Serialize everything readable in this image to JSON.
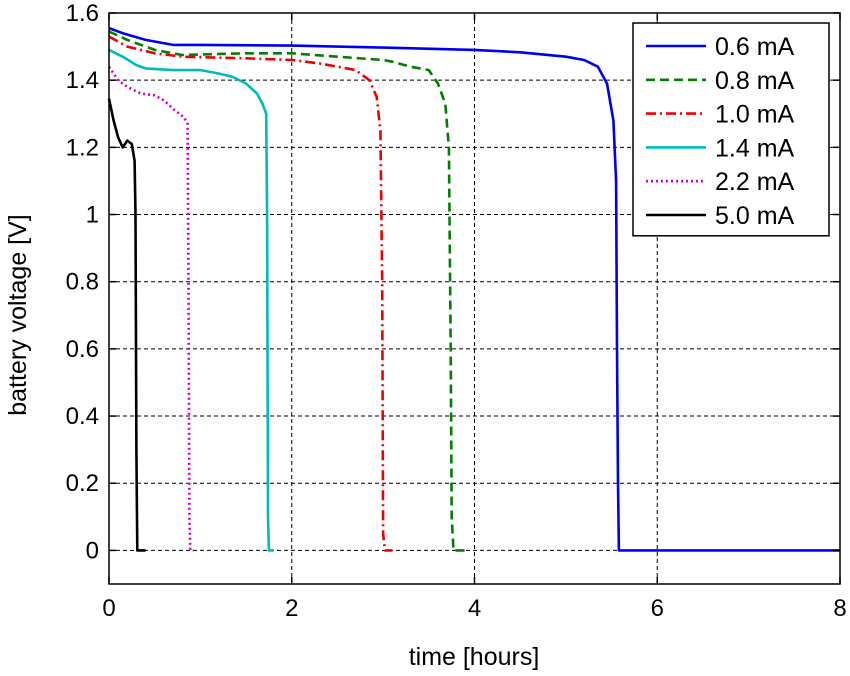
{
  "chart_data": {
    "type": "line",
    "title": "",
    "xlabel": "time [hours]",
    "ylabel": "battery voltage [V]",
    "xlim": [
      0,
      8
    ],
    "ylim": [
      -0.1,
      1.6
    ],
    "xticks": [
      0,
      2,
      4,
      6,
      8
    ],
    "yticks": [
      0,
      0.2,
      0.4,
      0.6,
      0.8,
      1,
      1.2,
      1.4,
      1.6
    ],
    "xtick_labels": [
      "0",
      "2",
      "4",
      "6",
      "8"
    ],
    "ytick_labels": [
      "0",
      "0.2",
      "0.4",
      "0.6",
      "0.8",
      "1",
      "1.2",
      "1.4",
      "1.6"
    ],
    "grid": true,
    "legend_position": "top-right",
    "series": [
      {
        "name": "0.6 mA",
        "color": "#0000ee",
        "dash": "solid",
        "points": [
          [
            0,
            1.555
          ],
          [
            0.15,
            1.54
          ],
          [
            0.4,
            1.52
          ],
          [
            0.7,
            1.505
          ],
          [
            1.0,
            1.505
          ],
          [
            2.0,
            1.503
          ],
          [
            3.0,
            1.497
          ],
          [
            4.0,
            1.49
          ],
          [
            4.5,
            1.483
          ],
          [
            5.0,
            1.47
          ],
          [
            5.2,
            1.46
          ],
          [
            5.35,
            1.44
          ],
          [
            5.45,
            1.39
          ],
          [
            5.52,
            1.28
          ],
          [
            5.55,
            1.1
          ],
          [
            5.56,
            0.6
          ],
          [
            5.57,
            0.2
          ],
          [
            5.58,
            0.0
          ],
          [
            6.0,
            0.0
          ],
          [
            8.0,
            0.0
          ]
        ]
      },
      {
        "name": "0.8 mA",
        "color": "#008000",
        "dash": "dashed",
        "points": [
          [
            0,
            1.545
          ],
          [
            0.2,
            1.52
          ],
          [
            0.5,
            1.49
          ],
          [
            0.8,
            1.475
          ],
          [
            1.5,
            1.48
          ],
          [
            2.0,
            1.48
          ],
          [
            2.5,
            1.47
          ],
          [
            3.0,
            1.46
          ],
          [
            3.1,
            1.455
          ],
          [
            3.3,
            1.44
          ],
          [
            3.5,
            1.43
          ],
          [
            3.6,
            1.39
          ],
          [
            3.68,
            1.33
          ],
          [
            3.72,
            1.2
          ],
          [
            3.74,
            0.6
          ],
          [
            3.75,
            0.1
          ],
          [
            3.77,
            0.0
          ],
          [
            3.9,
            0.0
          ]
        ]
      },
      {
        "name": "1.0 mA",
        "color": "#ee0000",
        "dash": "dashdot",
        "points": [
          [
            0,
            1.53
          ],
          [
            0.2,
            1.5
          ],
          [
            0.5,
            1.48
          ],
          [
            0.8,
            1.47
          ],
          [
            1.5,
            1.465
          ],
          [
            2.0,
            1.46
          ],
          [
            2.3,
            1.45
          ],
          [
            2.5,
            1.44
          ],
          [
            2.7,
            1.43
          ],
          [
            2.85,
            1.4
          ],
          [
            2.93,
            1.35
          ],
          [
            2.97,
            1.25
          ],
          [
            2.99,
            0.8
          ],
          [
            3.0,
            0.05
          ],
          [
            3.02,
            0.0
          ],
          [
            3.1,
            0.0
          ]
        ]
      },
      {
        "name": "1.4 mA",
        "color": "#00bbbb",
        "dash": "solid",
        "points": [
          [
            0,
            1.49
          ],
          [
            0.15,
            1.47
          ],
          [
            0.3,
            1.445
          ],
          [
            0.4,
            1.435
          ],
          [
            0.7,
            1.43
          ],
          [
            1.0,
            1.43
          ],
          [
            1.2,
            1.42
          ],
          [
            1.35,
            1.41
          ],
          [
            1.5,
            1.39
          ],
          [
            1.62,
            1.36
          ],
          [
            1.68,
            1.33
          ],
          [
            1.72,
            1.3
          ],
          [
            1.73,
            1.0
          ],
          [
            1.74,
            0.1
          ],
          [
            1.75,
            0.0
          ],
          [
            1.8,
            0.0
          ]
        ]
      },
      {
        "name": "2.2 mA",
        "color": "#cc00cc",
        "dash": "dotted",
        "points": [
          [
            0,
            1.44
          ],
          [
            0.1,
            1.4
          ],
          [
            0.2,
            1.38
          ],
          [
            0.35,
            1.36
          ],
          [
            0.5,
            1.355
          ],
          [
            0.6,
            1.34
          ],
          [
            0.72,
            1.31
          ],
          [
            0.82,
            1.29
          ],
          [
            0.86,
            1.27
          ],
          [
            0.87,
            0.8
          ],
          [
            0.88,
            0.1
          ],
          [
            0.89,
            0.0
          ],
          [
            0.92,
            0.0
          ]
        ]
      },
      {
        "name": "5.0 mA",
        "color": "#000000",
        "dash": "solid",
        "points": [
          [
            0,
            1.345
          ],
          [
            0.05,
            1.28
          ],
          [
            0.1,
            1.23
          ],
          [
            0.15,
            1.2
          ],
          [
            0.2,
            1.22
          ],
          [
            0.25,
            1.21
          ],
          [
            0.28,
            1.16
          ],
          [
            0.29,
            1.0
          ],
          [
            0.3,
            0.3
          ],
          [
            0.31,
            0.0
          ],
          [
            0.33,
            0.0
          ],
          [
            0.4,
            0.0
          ]
        ]
      }
    ]
  }
}
